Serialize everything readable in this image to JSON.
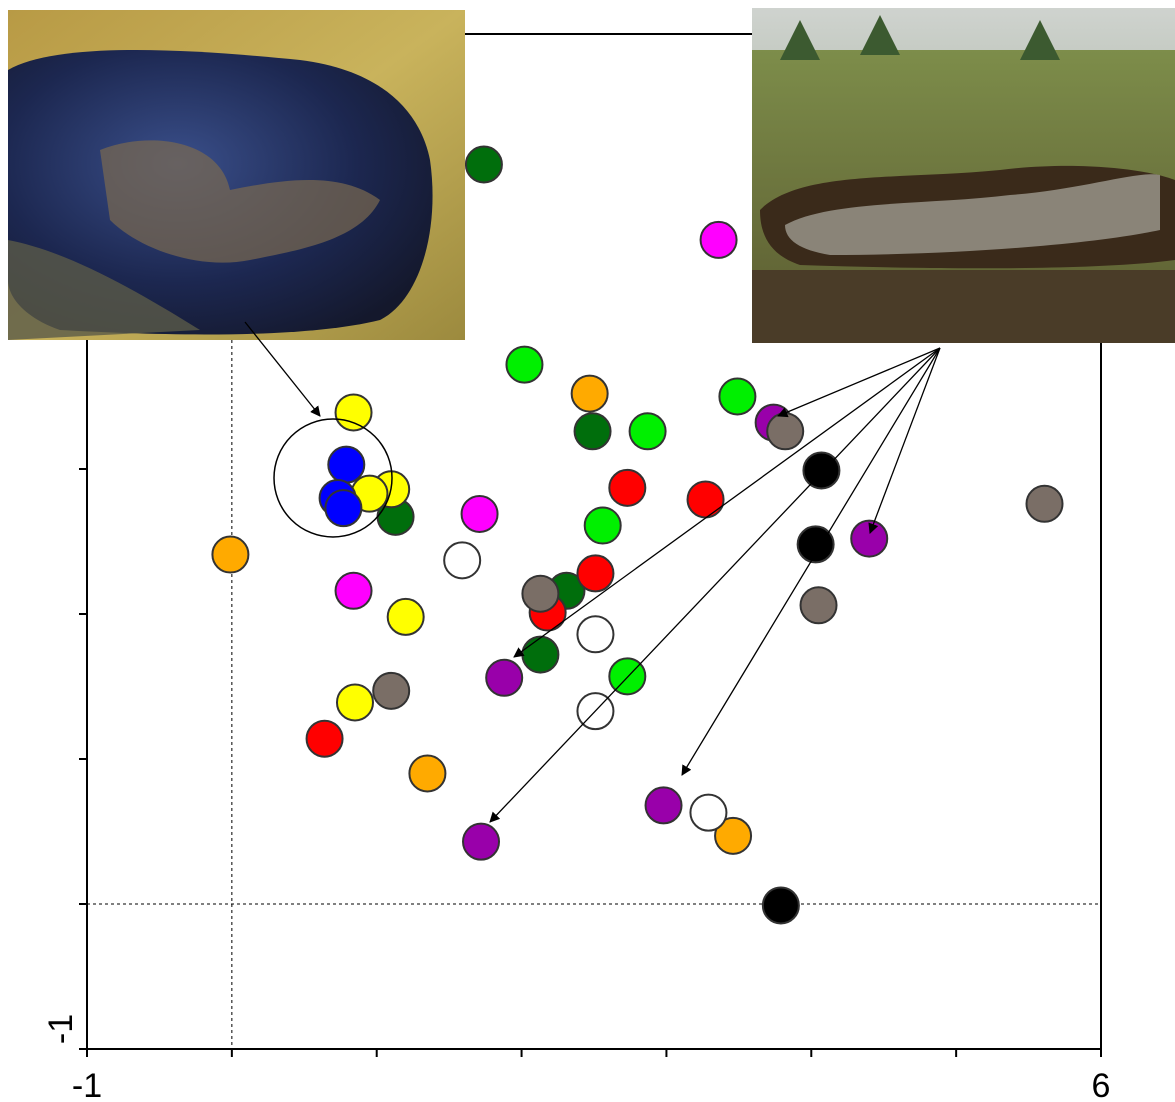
{
  "chart_data": {
    "type": "scatter",
    "xlim": [
      -1,
      6
    ],
    "ylim": [
      -1,
      6
    ],
    "xticks": [
      -1,
      6
    ],
    "yticks": [
      -1
    ],
    "xminor_ticks": [
      0,
      1,
      2,
      3,
      4,
      5
    ],
    "yminor_ticks": [
      0,
      1,
      2,
      3,
      4,
      5
    ],
    "zero_lines": true,
    "series": [
      {
        "color": "#006e0c",
        "x": [
          1.74,
          2.49,
          1.13,
          2.31,
          2.13
        ],
        "y": [
          5.1,
          3.26,
          2.67,
          2.16,
          1.72
        ]
      },
      {
        "color": "#ff00ff",
        "x": [
          3.36,
          1.71,
          0.84
        ],
        "y": [
          4.58,
          2.69,
          2.16
        ]
      },
      {
        "color": "#00f000",
        "x": [
          2.02,
          2.87,
          3.49,
          2.56,
          2.73
        ],
        "y": [
          3.72,
          3.26,
          3.5,
          2.61,
          1.57
        ]
      },
      {
        "color": "#ffaa00",
        "x": [
          2.47,
          -0.01,
          1.35,
          3.46
        ],
        "y": [
          3.52,
          2.41,
          0.9,
          0.47
        ]
      },
      {
        "color": "#ffff00",
        "x": [
          0.84,
          1.1,
          0.95,
          1.2,
          0.85
        ],
        "y": [
          3.39,
          2.86,
          2.83,
          1.98,
          1.39
        ]
      },
      {
        "color": "#0000ff",
        "x": [
          0.79,
          0.73,
          0.77
        ],
        "y": [
          3.03,
          2.8,
          2.73
        ]
      },
      {
        "color": "#ff0000",
        "x": [
          2.73,
          3.27,
          2.51,
          2.18,
          0.64
        ],
        "y": [
          2.87,
          2.79,
          2.28,
          2.01,
          1.14
        ]
      },
      {
        "color": "#9900aa",
        "x": [
          3.74,
          4.4,
          1.88,
          2.98,
          1.72
        ],
        "y": [
          3.32,
          2.52,
          1.56,
          0.68,
          0.43
        ]
      },
      {
        "color": "#7a6e66",
        "x": [
          3.82,
          5.61,
          4.05,
          2.13,
          1.1
        ],
        "y": [
          3.26,
          2.76,
          2.06,
          2.14,
          1.47
        ]
      },
      {
        "color": "#000000",
        "x": [
          4.07,
          4.03,
          3.79
        ],
        "y": [
          2.99,
          2.48,
          -0.01
        ]
      },
      {
        "color": "#ffffff",
        "x": [
          1.59,
          2.51,
          2.51,
          3.29
        ],
        "y": [
          2.37,
          1.86,
          1.33,
          0.63
        ]
      }
    ]
  }
}
